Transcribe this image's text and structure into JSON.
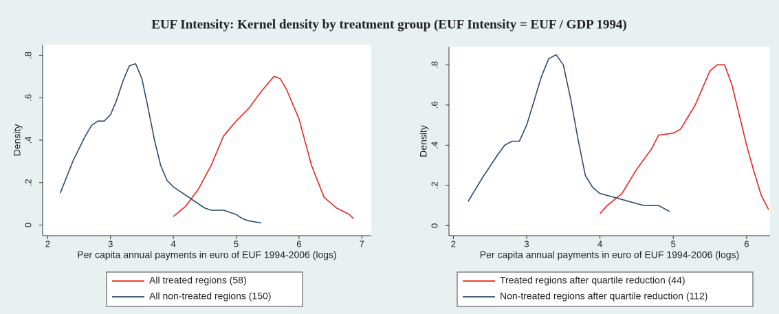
{
  "title": "EUF Intensity: Kernel density by treatment group (EUF Intensity = EUF / GDP 1994)",
  "chart_data": [
    {
      "type": "line",
      "x_label": "Per capita annual payments in euro of EUF 1994-2006 (logs)",
      "y_label": "Density",
      "xlim": [
        1.92,
        7.15
      ],
      "ylim": [
        -0.05,
        0.85
      ],
      "xticks": [
        2,
        3,
        4,
        5,
        6,
        7
      ],
      "yticks": [
        0,
        {
          "value": 0.2,
          "label": ".2"
        },
        {
          "value": 0.4,
          "label": ".4"
        },
        {
          "value": 0.6,
          "label": ".6"
        },
        {
          "value": 0.8,
          "label": ".8"
        }
      ],
      "series": [
        {
          "name": "All treated regions (58)",
          "color": "#e8231f",
          "x": [
            4.0,
            4.2,
            4.4,
            4.6,
            4.8,
            5.0,
            5.2,
            5.4,
            5.6,
            5.7,
            5.8,
            6.0,
            6.2,
            6.4,
            6.6,
            6.8,
            6.87
          ],
          "values": [
            0.04,
            0.09,
            0.17,
            0.28,
            0.42,
            0.49,
            0.55,
            0.63,
            0.7,
            0.69,
            0.64,
            0.5,
            0.28,
            0.13,
            0.08,
            0.05,
            0.03
          ]
        },
        {
          "name": "All non-treated regions (150)",
          "color": "#2b4a6b",
          "x": [
            2.2,
            2.4,
            2.6,
            2.7,
            2.8,
            2.9,
            3.0,
            3.1,
            3.2,
            3.3,
            3.4,
            3.5,
            3.6,
            3.7,
            3.8,
            3.9,
            4.0,
            4.2,
            4.4,
            4.5,
            4.6,
            4.8,
            5.0,
            5.1,
            5.2,
            5.4
          ],
          "values": [
            0.15,
            0.3,
            0.42,
            0.47,
            0.49,
            0.49,
            0.52,
            0.59,
            0.68,
            0.75,
            0.76,
            0.69,
            0.55,
            0.4,
            0.28,
            0.21,
            0.18,
            0.14,
            0.1,
            0.08,
            0.07,
            0.07,
            0.05,
            0.03,
            0.02,
            0.01
          ]
        }
      ]
    },
    {
      "type": "line",
      "x_label": "Per capita annual payments in euro of EUF 1994-2006 (logs)",
      "y_label": "Density",
      "xlim": [
        1.94,
        6.32
      ],
      "ylim": [
        -0.05,
        0.89
      ],
      "xticks": [
        2,
        3,
        4,
        5,
        6
      ],
      "yticks": [
        0,
        {
          "value": 0.2,
          "label": ".2"
        },
        {
          "value": 0.4,
          "label": ".4"
        },
        {
          "value": 0.6,
          "label": ".6"
        },
        {
          "value": 0.8,
          "label": ".8"
        }
      ],
      "series": [
        {
          "name": "Treated regions after quartile reduction (44)",
          "color": "#e8231f",
          "x": [
            4.0,
            4.1,
            4.3,
            4.5,
            4.7,
            4.8,
            5.0,
            5.1,
            5.3,
            5.5,
            5.6,
            5.7,
            5.8,
            6.0,
            6.1,
            6.2,
            6.3
          ],
          "values": [
            0.06,
            0.1,
            0.16,
            0.28,
            0.38,
            0.45,
            0.46,
            0.48,
            0.6,
            0.77,
            0.8,
            0.8,
            0.7,
            0.4,
            0.27,
            0.15,
            0.08
          ]
        },
        {
          "name": "Non-treated regions after quartile reduction (112)",
          "color": "#2b4a6b",
          "x": [
            2.2,
            2.4,
            2.6,
            2.7,
            2.8,
            2.9,
            3.0,
            3.1,
            3.2,
            3.3,
            3.4,
            3.5,
            3.6,
            3.7,
            3.8,
            3.9,
            4.0,
            4.2,
            4.4,
            4.6,
            4.8,
            4.95
          ],
          "values": [
            0.12,
            0.24,
            0.35,
            0.4,
            0.42,
            0.42,
            0.5,
            0.62,
            0.74,
            0.83,
            0.85,
            0.8,
            0.63,
            0.43,
            0.25,
            0.19,
            0.16,
            0.14,
            0.12,
            0.1,
            0.1,
            0.07
          ]
        }
      ]
    }
  ]
}
